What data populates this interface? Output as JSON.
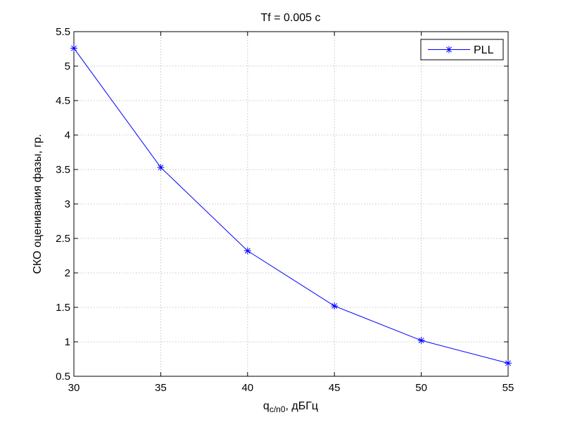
{
  "chart_data": {
    "type": "line",
    "title": "Tf = 0.005 с",
    "xlabel_main": "q",
    "xlabel_sub": "c/n0",
    "xlabel_rest": ", дБГц",
    "ylabel": "СКО оценивания фазы, гр.",
    "x": [
      30,
      35,
      40,
      45,
      50,
      55
    ],
    "series": [
      {
        "name": "PLL",
        "values": [
          5.26,
          3.53,
          2.32,
          1.52,
          1.02,
          0.69
        ]
      }
    ],
    "xlim": [
      30,
      55
    ],
    "ylim": [
      0.5,
      5.5
    ],
    "xticks": [
      30,
      35,
      40,
      45,
      50,
      55
    ],
    "xtick_labels": [
      "30",
      "35",
      "40",
      "45",
      "50",
      "55"
    ],
    "yticks": [
      0.5,
      1,
      1.5,
      2,
      2.5,
      3,
      3.5,
      4,
      4.5,
      5,
      5.5
    ],
    "ytick_labels": [
      "0.5",
      "1",
      "1.5",
      "2",
      "2.5",
      "3",
      "3.5",
      "4",
      "4.5",
      "5",
      "5.5"
    ],
    "grid": true,
    "legend_position": "top-right",
    "marker": "asterisk",
    "line_color": "#0000ff"
  }
}
